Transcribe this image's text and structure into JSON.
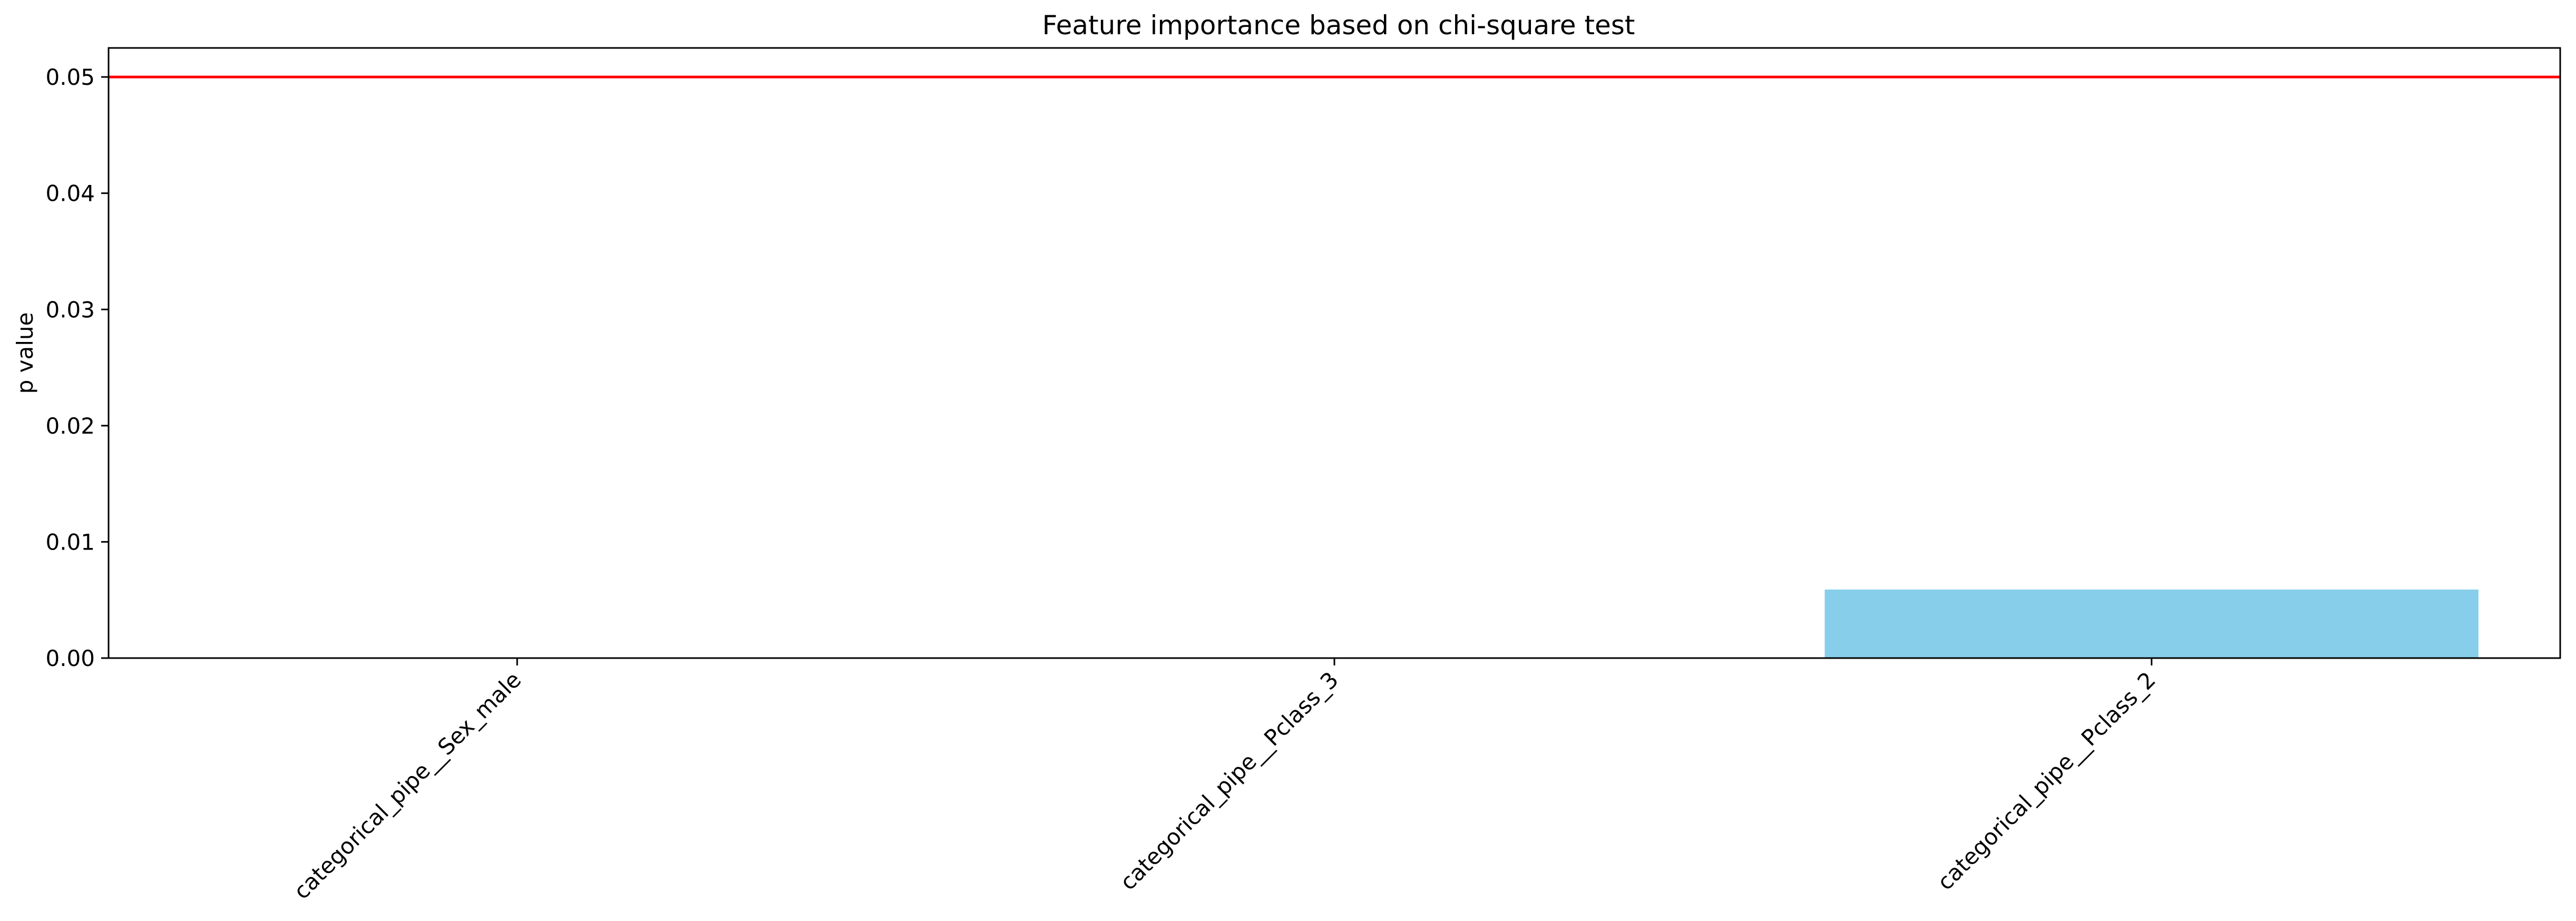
{
  "chart_data": {
    "type": "bar",
    "title": "Feature importance based on chi-square test",
    "xlabel": "",
    "ylabel": "p value",
    "categories": [
      "categorical_pipe__Sex_male",
      "categorical_pipe__Pclass_3",
      "categorical_pipe__Pclass_2"
    ],
    "values": [
      0.0,
      0.0,
      0.0059
    ],
    "ylim": [
      0.0,
      0.0525
    ],
    "yticks": [
      "0.00",
      "0.01",
      "0.02",
      "0.03",
      "0.04",
      "0.05"
    ],
    "threshold": 0.05,
    "grid": false,
    "colors": {
      "bar": "#87ceeb",
      "threshold_line": "#ff0000",
      "axes": "#000000"
    }
  }
}
